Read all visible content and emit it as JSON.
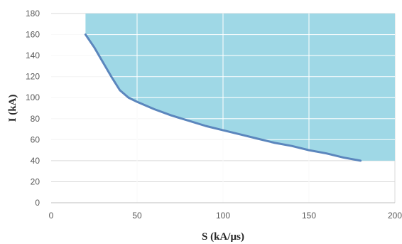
{
  "chart_data": {
    "type": "area",
    "title": "",
    "xlabel": "S (kA/µs)",
    "ylabel": "I (kA)",
    "xlim": [
      0,
      200
    ],
    "ylim": [
      0,
      180
    ],
    "x_ticks": [
      "0",
      "50",
      "100",
      "150",
      "200"
    ],
    "y_ticks": [
      "0",
      "20",
      "40",
      "60",
      "80",
      "100",
      "120",
      "140",
      "160",
      "180"
    ],
    "grid": true,
    "legend": "none",
    "colors": {
      "area": "#9fd8e6",
      "line": "#5b86bd",
      "grid": "#d9d9d9",
      "axis": "#bfbfbf"
    },
    "boundary_curve": {
      "x": [
        20,
        25,
        30,
        35,
        40,
        45,
        50,
        60,
        70,
        80,
        90,
        100,
        110,
        120,
        130,
        140,
        150,
        160,
        170,
        180
      ],
      "y": [
        160,
        148,
        134,
        120,
        107,
        100,
        96,
        89,
        83,
        78,
        73,
        69,
        65,
        61,
        57,
        54,
        50,
        47,
        43,
        40
      ]
    },
    "shaded_region": {
      "description_x_range": [
        20,
        200
      ],
      "y_top": 180
    }
  }
}
